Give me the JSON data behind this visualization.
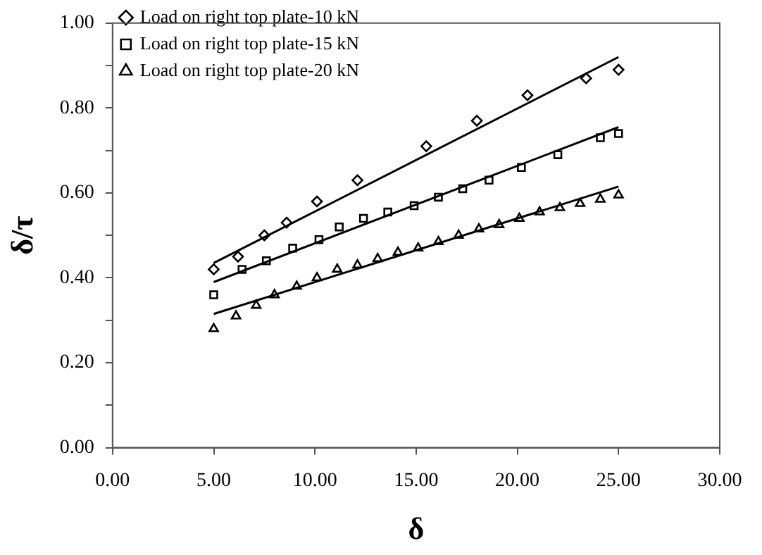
{
  "chart_data": {
    "type": "scatter",
    "xlabel": "δ",
    "ylabel": "δ/τ",
    "legend": "top left",
    "grid": false,
    "xlim": [
      0,
      30
    ],
    "xticks": [
      {
        "value": 0,
        "label": "0.00"
      },
      {
        "value": 5,
        "label": "5.00"
      },
      {
        "value": 10,
        "label": "10.00"
      },
      {
        "value": 15,
        "label": "15.00"
      },
      {
        "value": 20,
        "label": "20.00"
      },
      {
        "value": 25,
        "label": "25.00"
      },
      {
        "value": 30,
        "label": "30.00"
      }
    ],
    "ylim": [
      0,
      1
    ],
    "yticks": [
      {
        "value": 0,
        "label": "0.00"
      },
      {
        "value": 0.1,
        "label": null
      },
      {
        "value": 0.2,
        "label": "0.20"
      },
      {
        "value": 0.3,
        "label": null
      },
      {
        "value": 0.4,
        "label": "0.40"
      },
      {
        "value": 0.5,
        "label": null
      },
      {
        "value": 0.6,
        "label": "0.60"
      },
      {
        "value": 0.7,
        "label": null
      },
      {
        "value": 0.8,
        "label": "0.80"
      },
      {
        "value": 0.9,
        "label": null
      },
      {
        "value": 1,
        "label": "1.00"
      }
    ],
    "series": [
      {
        "name": "Load on right top plate-10 kN",
        "color": "#000000",
        "marker": "diamond",
        "x": [
          5,
          6.2,
          7.5,
          8.6,
          10.1,
          12.1,
          15.5,
          18,
          20.5,
          23.4,
          25
        ],
        "values": [
          0.42,
          0.45,
          0.5,
          0.53,
          0.58,
          0.63,
          0.71,
          0.77,
          0.83,
          0.87,
          0.89
        ]
      },
      {
        "name": "Load on right top plate-15 kN",
        "color": "#000000",
        "marker": "square",
        "x": [
          5,
          6.4,
          7.6,
          8.9,
          10.2,
          11.2,
          12.4,
          13.6,
          14.9,
          16.1,
          17.3,
          18.6,
          20.2,
          22,
          24.1,
          25
        ],
        "values": [
          0.36,
          0.42,
          0.44,
          0.47,
          0.49,
          0.52,
          0.54,
          0.555,
          0.57,
          0.59,
          0.61,
          0.63,
          0.66,
          0.69,
          0.73,
          0.74
        ]
      },
      {
        "name": "Load on right top plate-20 kN",
        "color": "#000000",
        "marker": "triangle",
        "x": [
          5,
          6.1,
          7.1,
          8,
          9.1,
          10.1,
          11.1,
          12.1,
          13.1,
          14.1,
          15.1,
          16.1,
          17.1,
          18.1,
          19.1,
          20.1,
          21.1,
          22.1,
          23.1,
          24.1,
          25
        ],
        "values": [
          0.28,
          0.31,
          0.335,
          0.36,
          0.38,
          0.4,
          0.42,
          0.43,
          0.445,
          0.46,
          0.47,
          0.485,
          0.5,
          0.515,
          0.525,
          0.54,
          0.555,
          0.565,
          0.575,
          0.585,
          0.595
        ]
      },
      {
        "type": "line",
        "color": "#000000",
        "marker": "none",
        "line_style": "solid",
        "x": [
          5,
          25
        ],
        "values": [
          0.435,
          0.92
        ]
      },
      {
        "type": "line",
        "color": "#000000",
        "marker": "none",
        "line_style": "solid",
        "x": [
          5,
          25
        ],
        "values": [
          0.39,
          0.755
        ]
      },
      {
        "type": "line",
        "color": "#000000",
        "marker": "none",
        "line_style": "solid",
        "x": [
          5,
          25
        ],
        "values": [
          0.315,
          0.615
        ]
      }
    ]
  }
}
